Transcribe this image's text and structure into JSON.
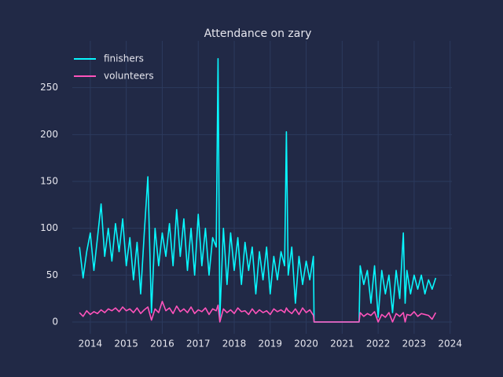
{
  "chart_data": {
    "type": "line",
    "title": "Attendance on zary",
    "x": [
      2013.7,
      2013.8,
      2013.9,
      2014.0,
      2014.1,
      2014.2,
      2014.3,
      2014.4,
      2014.5,
      2014.6,
      2014.7,
      2014.8,
      2014.9,
      2015.0,
      2015.1,
      2015.2,
      2015.3,
      2015.4,
      2015.5,
      2015.6,
      2015.7,
      2015.8,
      2015.9,
      2016.0,
      2016.1,
      2016.2,
      2016.3,
      2016.4,
      2016.5,
      2016.6,
      2016.7,
      2016.8,
      2016.9,
      2017.0,
      2017.1,
      2017.2,
      2017.3,
      2017.4,
      2017.5,
      2017.55,
      2017.6,
      2017.7,
      2017.8,
      2017.9,
      2018.0,
      2018.1,
      2018.2,
      2018.3,
      2018.4,
      2018.5,
      2018.6,
      2018.7,
      2018.8,
      2018.9,
      2019.0,
      2019.1,
      2019.2,
      2019.3,
      2019.4,
      2019.45,
      2019.5,
      2019.6,
      2019.7,
      2019.8,
      2019.9,
      2020.0,
      2020.1,
      2020.2,
      2020.22,
      2021.47,
      2021.5,
      2021.6,
      2021.7,
      2021.8,
      2021.9,
      2022.0,
      2022.1,
      2022.2,
      2022.3,
      2022.4,
      2022.5,
      2022.6,
      2022.7,
      2022.75,
      2022.8,
      2022.9,
      2023.0,
      2023.1,
      2023.2,
      2023.3,
      2023.4,
      2023.5,
      2023.6
    ],
    "series": [
      {
        "name": "finishers",
        "color": "#08f7fe",
        "values": [
          80,
          47,
          75,
          95,
          55,
          90,
          126,
          70,
          100,
          65,
          105,
          75,
          110,
          60,
          90,
          45,
          85,
          30,
          95,
          155,
          10,
          100,
          60,
          95,
          70,
          105,
          60,
          120,
          70,
          110,
          55,
          100,
          50,
          115,
          60,
          100,
          50,
          90,
          80,
          281,
          5,
          100,
          40,
          95,
          55,
          90,
          40,
          85,
          55,
          80,
          30,
          75,
          45,
          80,
          30,
          70,
          45,
          75,
          60,
          203,
          50,
          80,
          20,
          70,
          40,
          65,
          45,
          70,
          0,
          0,
          60,
          40,
          55,
          20,
          60,
          5,
          55,
          30,
          50,
          10,
          55,
          25,
          95,
          20,
          55,
          30,
          50,
          35,
          50,
          30,
          45,
          35,
          47
        ]
      },
      {
        "name": "volunteers",
        "color": "#fe53bb",
        "values": [
          10,
          6,
          12,
          8,
          11,
          9,
          13,
          10,
          14,
          12,
          15,
          11,
          16,
          12,
          14,
          10,
          15,
          9,
          13,
          16,
          2,
          14,
          10,
          22,
          12,
          15,
          9,
          17,
          11,
          14,
          10,
          16,
          9,
          13,
          11,
          15,
          8,
          14,
          12,
          18,
          0,
          14,
          10,
          13,
          9,
          15,
          11,
          12,
          8,
          14,
          9,
          13,
          10,
          12,
          8,
          14,
          11,
          13,
          10,
          15,
          12,
          9,
          14,
          8,
          15,
          10,
          13,
          7,
          0,
          0,
          10,
          6,
          9,
          7,
          11,
          0,
          8,
          5,
          10,
          0,
          9,
          6,
          10,
          0,
          8,
          7,
          11,
          6,
          9,
          8,
          7,
          3,
          10
        ]
      }
    ],
    "xlim": [
      2013.5,
      2024.05
    ],
    "xticks": [
      2014,
      2015,
      2016,
      2017,
      2018,
      2019,
      2020,
      2021,
      2022,
      2023,
      2024
    ],
    "ylim": [
      -12.6,
      300
    ],
    "yticks": [
      0,
      50,
      100,
      150,
      200,
      250
    ],
    "grid": true,
    "legend": "upper left"
  }
}
